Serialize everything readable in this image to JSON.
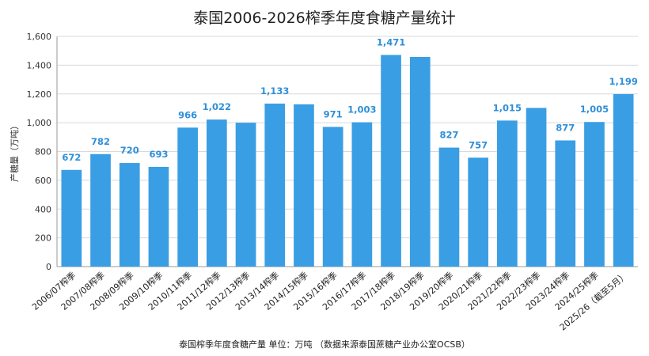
{
  "chart_data": {
    "type": "bar",
    "title": "泰国2006-2026榨季年度食糖产量统计",
    "ylabel": "产糖量（万吨）",
    "footer": "泰国榨季年度食糖产量  单位：万吨  （数据来源泰国蔗糖产业办公室OCSB）",
    "ylim": [
      0,
      1600
    ],
    "yticks": [
      "0",
      "200",
      "400",
      "600",
      "800",
      "1,000",
      "1,200",
      "1,400",
      "1,600"
    ],
    "grid": true,
    "bar_color": "#3a9ee4",
    "label_color": "#2f8fd8",
    "categories": [
      "2006/07榨季",
      "2007/08榨季",
      "2008/09榨季",
      "2009/10榨季",
      "2010/11榨季",
      "2011/12榨季",
      "2012/13榨季",
      "2013/14榨季",
      "2014/15榨季",
      "2015/16榨季",
      "2016/17榨季",
      "2017/18榨季",
      "2018/19榨季",
      "2019/20榨季",
      "2020/21榨季",
      "2021/22榨季",
      "2022/23榨季",
      "2023/24榨季",
      "2024/25榨季",
      "2025/26（截至5月）"
    ],
    "values": [
      672,
      782,
      720,
      693,
      966,
      1022,
      1000,
      1133,
      1128,
      971,
      1003,
      1471,
      1457,
      827,
      757,
      1015,
      1103,
      877,
      1005,
      1199
    ],
    "data_labels": [
      "672",
      "782",
      "720",
      "693",
      "966",
      "1,022",
      "",
      "1,133",
      "",
      "971",
      "1,003",
      "1,471",
      "",
      "827",
      "757",
      "1,015",
      "",
      "877",
      "1,005",
      "1,199"
    ]
  }
}
